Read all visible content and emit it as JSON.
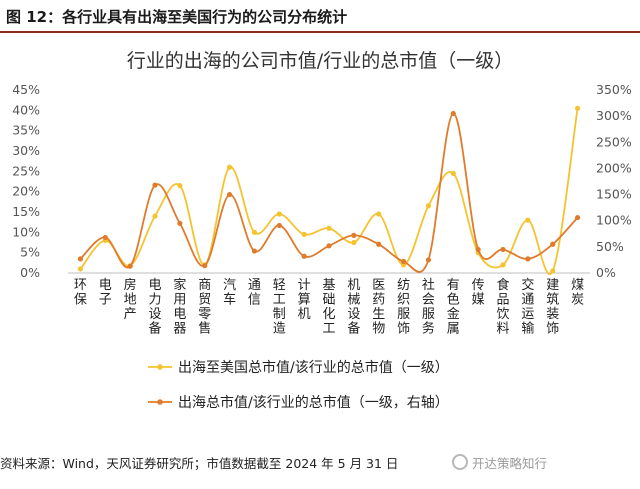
{
  "figure_title": "图 12：各行业具有出海至美国行为的公司分布统计",
  "source_note": "资料来源：Wind，天风证券研究所；市值数据截至 2024 年 5 月 31 日",
  "watermark": "开达策略知行",
  "colors": {
    "series_us": "#f5c330",
    "series_all": "#e07b2c",
    "title_rule": "#8c2b1e",
    "axis_text": "#555555"
  },
  "chart_data": {
    "type": "line",
    "title": "行业的出海的公司市值/行业的总市值（一级）",
    "categories": [
      "环保",
      "电子",
      "房地产",
      "电力设备",
      "家用电器",
      "商贸零售",
      "汽车",
      "通信",
      "轻工制造",
      "计算机",
      "基础化工",
      "机械设备",
      "医药生物",
      "纺织服饰",
      "社会服务",
      "有色金属",
      "传媒",
      "食品饮料",
      "交通运输",
      "建筑装饰",
      "煤炭"
    ],
    "y_left": {
      "ticks": [
        "0%",
        "5%",
        "10%",
        "15%",
        "20%",
        "25%",
        "30%",
        "35%",
        "40%",
        "45%"
      ],
      "ylim": [
        0,
        45
      ]
    },
    "y_right": {
      "ticks": [
        "0%",
        "50%",
        "100%",
        "150%",
        "200%",
        "250%",
        "300%",
        "350%"
      ],
      "ylim": [
        0,
        350
      ]
    },
    "series": [
      {
        "name": "出海至美国总市值/该行业的总市值（一级）",
        "axis": "left",
        "color": "#f5c330",
        "values": [
          1.0,
          8.0,
          1.8,
          14.0,
          21.5,
          2.0,
          26.0,
          10.0,
          14.5,
          9.5,
          11.0,
          7.5,
          14.5,
          2.0,
          16.5,
          24.5,
          5.0,
          2.0,
          13.0,
          0.5,
          40.5
        ]
      },
      {
        "name": "出海总市值/该行业的总市值（一级，右轴）",
        "axis": "right",
        "color": "#e07b2c",
        "values": [
          27,
          68,
          13,
          168,
          95,
          14,
          150,
          42,
          91,
          32,
          52,
          72,
          55,
          22,
          25,
          305,
          45,
          45,
          27,
          55,
          106
        ]
      }
    ]
  }
}
